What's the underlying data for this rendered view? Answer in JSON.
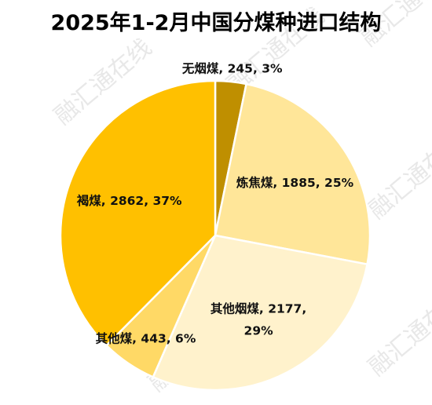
{
  "chart_data": {
    "type": "pie",
    "title": "2025年1-2月中国分煤种进口结构",
    "slices": [
      {
        "name": "无烟煤",
        "value": 245,
        "percent": "3%",
        "color": "#bf8f00"
      },
      {
        "name": "炼焦煤",
        "value": 1885,
        "percent": "25%",
        "color": "#ffe699"
      },
      {
        "name": "其他烟煤",
        "value": 2177,
        "percent": "29%",
        "color": "#fff2cc"
      },
      {
        "name": "其他煤",
        "value": 443,
        "percent": "6%",
        "color": "#ffd966"
      },
      {
        "name": "褐煤",
        "value": 2862,
        "percent": "37%",
        "color": "#ffc000"
      }
    ],
    "legend": "none"
  },
  "labels": [
    {
      "line1": "无烟煤, 245, 3%",
      "line2": ""
    },
    {
      "line1": "炼焦煤, 1885, 25%",
      "line2": ""
    },
    {
      "line1": "其他烟煤, 2177,",
      "line2": "29%"
    },
    {
      "line1": "其他煤, 443, 6%",
      "line2": ""
    },
    {
      "line1": "褐煤, 2862, 37%",
      "line2": ""
    }
  ],
  "watermark": "融汇通在线"
}
